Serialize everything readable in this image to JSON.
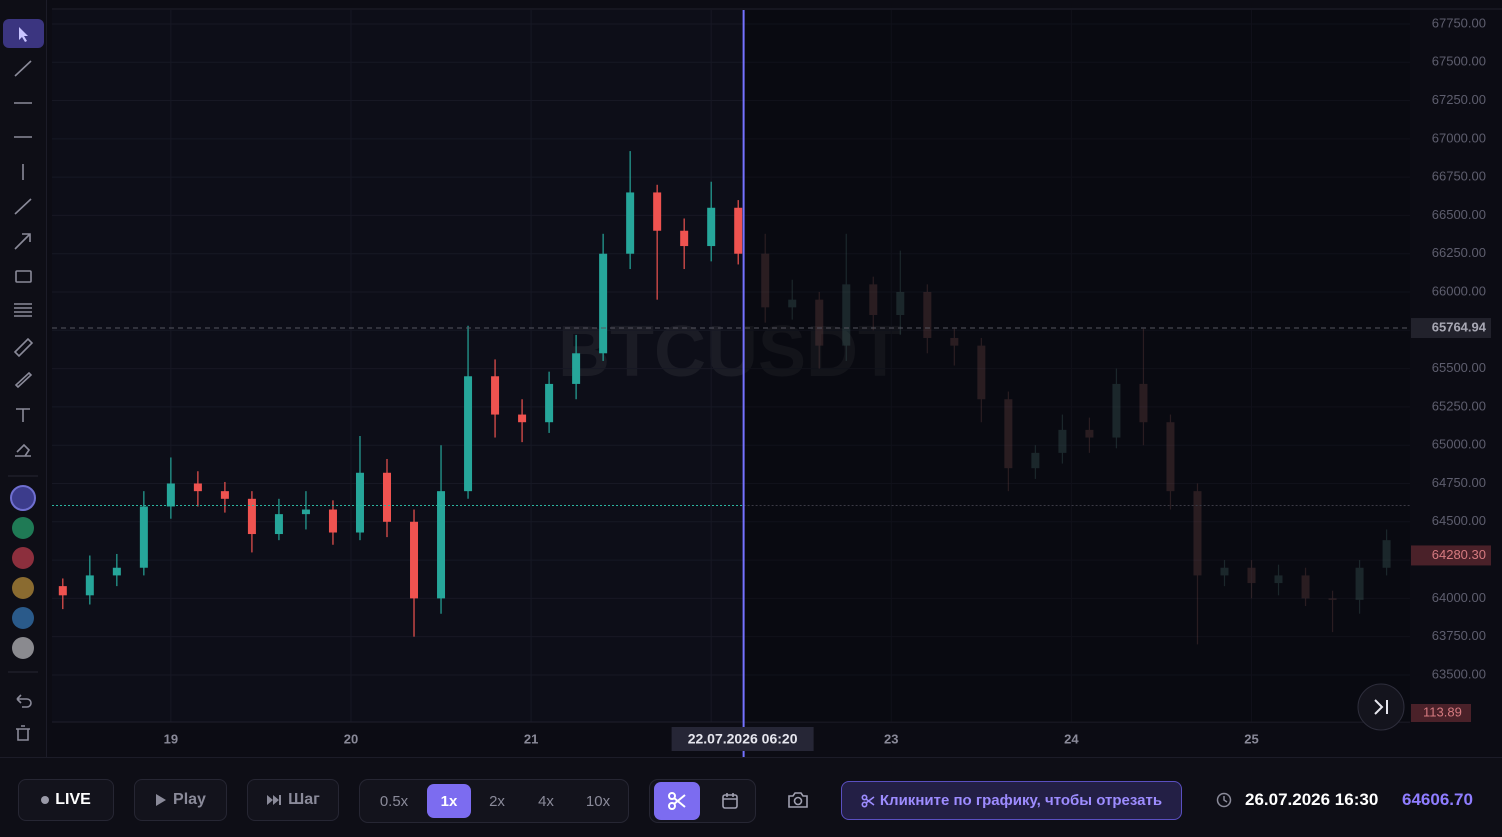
{
  "chart_data": {
    "type": "candlestick",
    "watermark": "BTCUSDT",
    "x": [
      18.4,
      18.55,
      18.7,
      18.85,
      19.0,
      19.15,
      19.3,
      19.45,
      19.6,
      19.75,
      19.9,
      20.05,
      20.2,
      20.35,
      20.5,
      20.65,
      20.8,
      20.95,
      21.1,
      21.25,
      21.4,
      21.55,
      21.7,
      21.85,
      22.0,
      22.15,
      22.3,
      22.45,
      22.6,
      22.75,
      22.9,
      23.05,
      23.2,
      23.35,
      23.5,
      23.65,
      23.8,
      23.95,
      24.1,
      24.25,
      24.4,
      24.55,
      24.7,
      24.85,
      25.0,
      25.15,
      25.3,
      25.45,
      25.6,
      25.75
    ],
    "open": [
      64080,
      64020,
      64150,
      64200,
      64600,
      64750,
      64700,
      64650,
      64420,
      64550,
      64580,
      64430,
      64820,
      64500,
      64000,
      64700,
      65450,
      65200,
      65150,
      65400,
      65600,
      66250,
      66650,
      66400,
      66300,
      66550,
      66250,
      65900,
      65950,
      65650,
      66050,
      65850,
      66000,
      65700,
      65650,
      65300,
      64850,
      64950,
      65100,
      65050,
      65400,
      65150,
      64700,
      64150,
      64200,
      64100,
      64150,
      64000,
      63990,
      64200
    ],
    "high": [
      64130,
      64280,
      64290,
      64700,
      64920,
      64830,
      64760,
      64700,
      64650,
      64700,
      64640,
      65060,
      64910,
      64580,
      65000,
      65780,
      65560,
      65300,
      65480,
      65720,
      66380,
      66920,
      66700,
      66480,
      66720,
      66600,
      66380,
      66080,
      66000,
      66380,
      66100,
      66270,
      66050,
      65760,
      65700,
      65350,
      65000,
      65200,
      65180,
      65500,
      65760,
      65200,
      64750,
      64250,
      64250,
      64220,
      64200,
      64050,
      64250,
      64450
    ],
    "low": [
      63930,
      63960,
      64080,
      64150,
      64520,
      64600,
      64560,
      64300,
      64380,
      64450,
      64350,
      64380,
      64400,
      63750,
      63900,
      64650,
      65050,
      65020,
      65080,
      65300,
      65550,
      66150,
      65950,
      66150,
      66200,
      66180,
      65800,
      65820,
      65500,
      65550,
      65750,
      65720,
      65600,
      65520,
      65150,
      64700,
      64780,
      64880,
      64950,
      64980,
      65000,
      64580,
      63700,
      64080,
      64000,
      64020,
      63950,
      63780,
      63900,
      64150
    ],
    "close": [
      64020,
      64150,
      64200,
      64600,
      64750,
      64700,
      64650,
      64420,
      64550,
      64580,
      64430,
      64820,
      64500,
      64000,
      64700,
      65450,
      65200,
      65150,
      65400,
      65600,
      66250,
      66650,
      66400,
      66300,
      66550,
      66250,
      65900,
      65950,
      65650,
      66050,
      65850,
      66000,
      65700,
      65650,
      65300,
      64850,
      64950,
      65100,
      65050,
      65400,
      65150,
      64700,
      64150,
      64200,
      64100,
      64150,
      64000,
      63990,
      64200,
      64380
    ],
    "up_color": "#26a69a",
    "down_color": "#ef5350",
    "xlim": [
      18.34,
      25.88
    ],
    "xticks": [
      19,
      20,
      21,
      22,
      23,
      24,
      25
    ],
    "ylim": [
      63193,
      67841
    ],
    "yticks": [
      {
        "value": 67750,
        "label": "67750.00"
      },
      {
        "value": 67500,
        "label": "67500.00"
      },
      {
        "value": 67250,
        "label": "67250.00"
      },
      {
        "value": 67000,
        "label": "67000.00"
      },
      {
        "value": 66750,
        "label": "66750.00"
      },
      {
        "value": 66500,
        "label": "66500.00"
      },
      {
        "value": 66250,
        "label": "66250.00"
      },
      {
        "value": 66000,
        "label": "66000.00"
      },
      {
        "value": 65750,
        "label": "65750.00"
      },
      {
        "value": 65500,
        "label": "65500.00"
      },
      {
        "value": 65250,
        "label": "65250.00"
      },
      {
        "value": 65000,
        "label": "65000.00"
      },
      {
        "value": 64750,
        "label": "64750.00"
      },
      {
        "value": 64500,
        "label": "64500.00"
      },
      {
        "value": 64250,
        "label": "64250.00"
      },
      {
        "value": 64000,
        "label": "64000.00"
      },
      {
        "value": 63750,
        "label": "63750.00"
      },
      {
        "value": 63500,
        "label": "63500.00"
      }
    ],
    "grid": true,
    "high_line": 65764.94,
    "last_price": {
      "value": 64280.3,
      "label": "64280.30"
    },
    "current_price": {
      "value": 64606.7,
      "label": "64606.70"
    },
    "volume_label": 113.89,
    "replay_x": 22.18,
    "replay_label": "22.07.2026 06:20"
  },
  "toolbar": {
    "live": "LIVE",
    "play": "Play",
    "step": "Шаг",
    "speeds": [
      "0.5x",
      "1x",
      "2x",
      "4x",
      "10x"
    ],
    "hint": "Кликните по графику, чтобы отрезать",
    "time": "26.07.2026 16:30"
  }
}
